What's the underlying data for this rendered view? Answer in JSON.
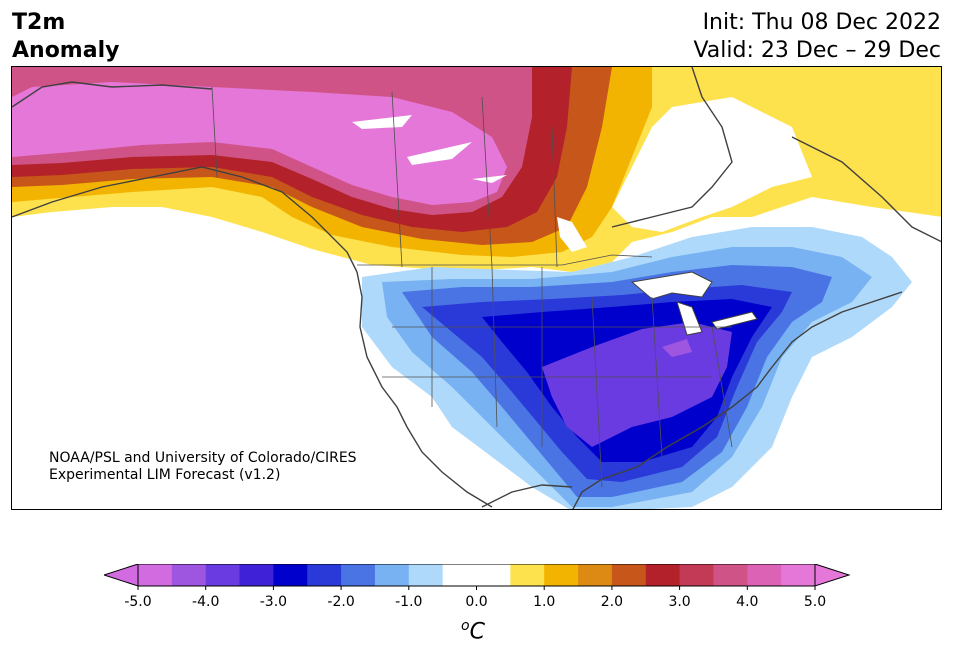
{
  "header": {
    "title_line1": "T2m",
    "title_line2": "Anomaly",
    "init": "Init: Thu 08 Dec 2022",
    "valid": "Valid: 23 Dec – 29 Dec"
  },
  "credit": {
    "line1": "NOAA/PSL and University of Colorado/CIRES",
    "line2": "Experimental LIM Forecast (v1.2)"
  },
  "colorbar": {
    "units_symbol": "o",
    "units_letter": "C",
    "ticks": [
      "-5.0",
      "-4.0",
      "-3.0",
      "-2.0",
      "-1.0",
      "0.0",
      "1.0",
      "2.0",
      "3.0",
      "4.0",
      "5.0"
    ],
    "colors": [
      "#d26ae0",
      "#9e55e0",
      "#6a3be0",
      "#3f22d8",
      "#0000cc",
      "#2a3ad8",
      "#4a74e4",
      "#79b2f2",
      "#aed9fa",
      "#ffffff",
      "#ffffff",
      "#fde14d",
      "#f2b400",
      "#dd8a14",
      "#c6561a",
      "#b3222a",
      "#c23a55",
      "#d05387",
      "#dc62b5",
      "#e577d8"
    ],
    "under_color": "#d26ae0",
    "over_color": "#e577d8"
  },
  "map": {
    "region": "North America",
    "colors": {
      "warm_strong": "#e577d8",
      "warm_mid": "#c23a55",
      "warm_light": "#fde14d",
      "cold_light": "#aed9fa",
      "cold_mid": "#4a74e4",
      "cold_strong": "#0000cc",
      "cold_extreme": "#6a3be0",
      "coast": "#404040"
    }
  }
}
